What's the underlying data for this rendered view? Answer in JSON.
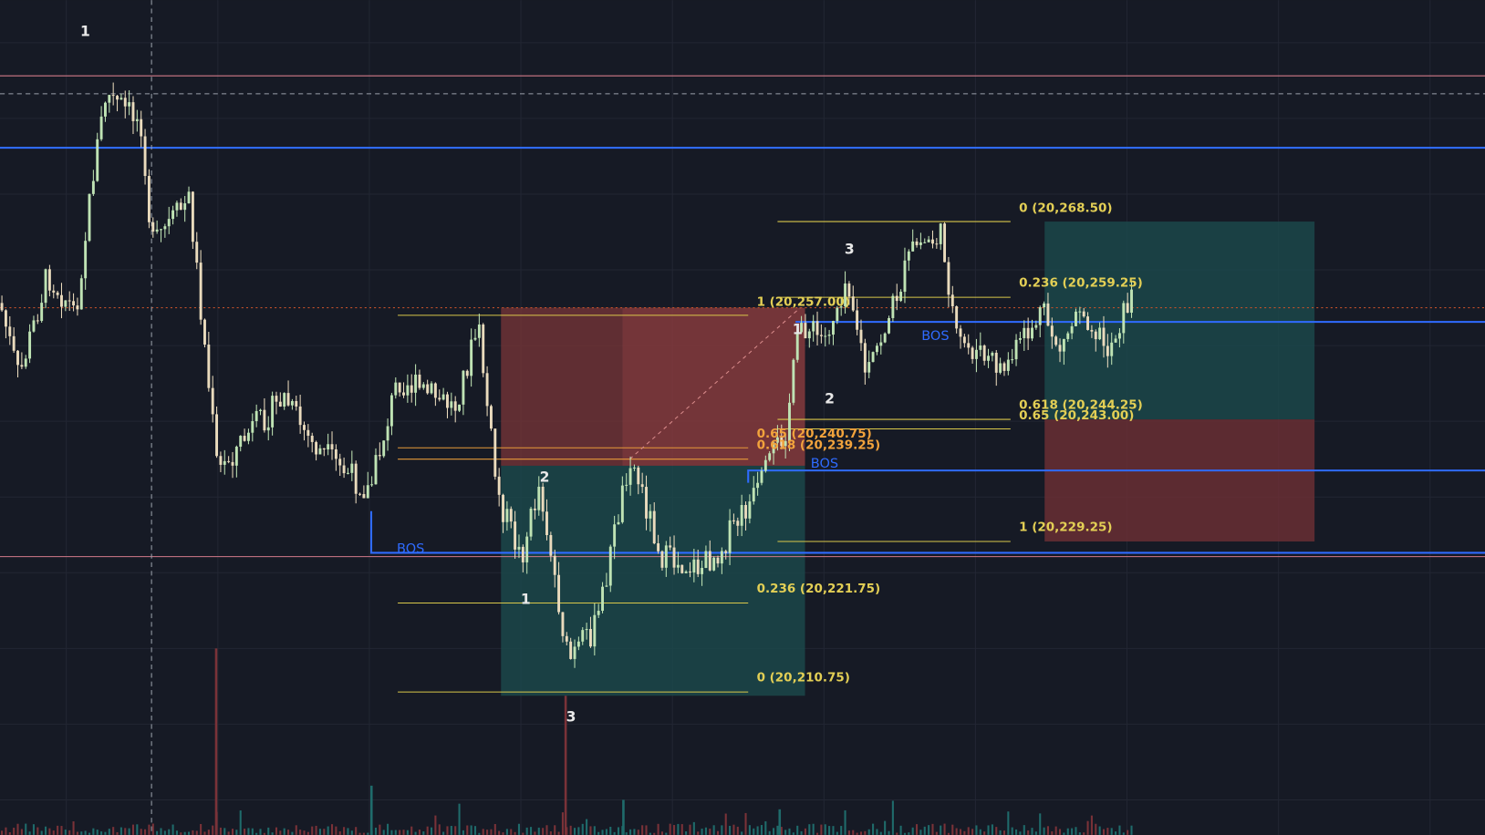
{
  "waves": [
    "1",
    "2",
    "1",
    "3",
    "1",
    "2",
    "3"
  ],
  "bos": [
    "BOS",
    "BOS",
    "BOS"
  ],
  "fib_left": [
    "1 (20,257.00)",
    "0.65 (20,240.75)",
    "0.618 (20,239.25)",
    "0.236 (20,221.75)",
    "0 (20,210.75)"
  ],
  "fib_right": [
    "0 (20,268.50)",
    "0.236 (20,259.25)",
    "0.618 (20,244.25)",
    "0.65 (20,243.00)",
    "1 (20,229.25)"
  ]
}
